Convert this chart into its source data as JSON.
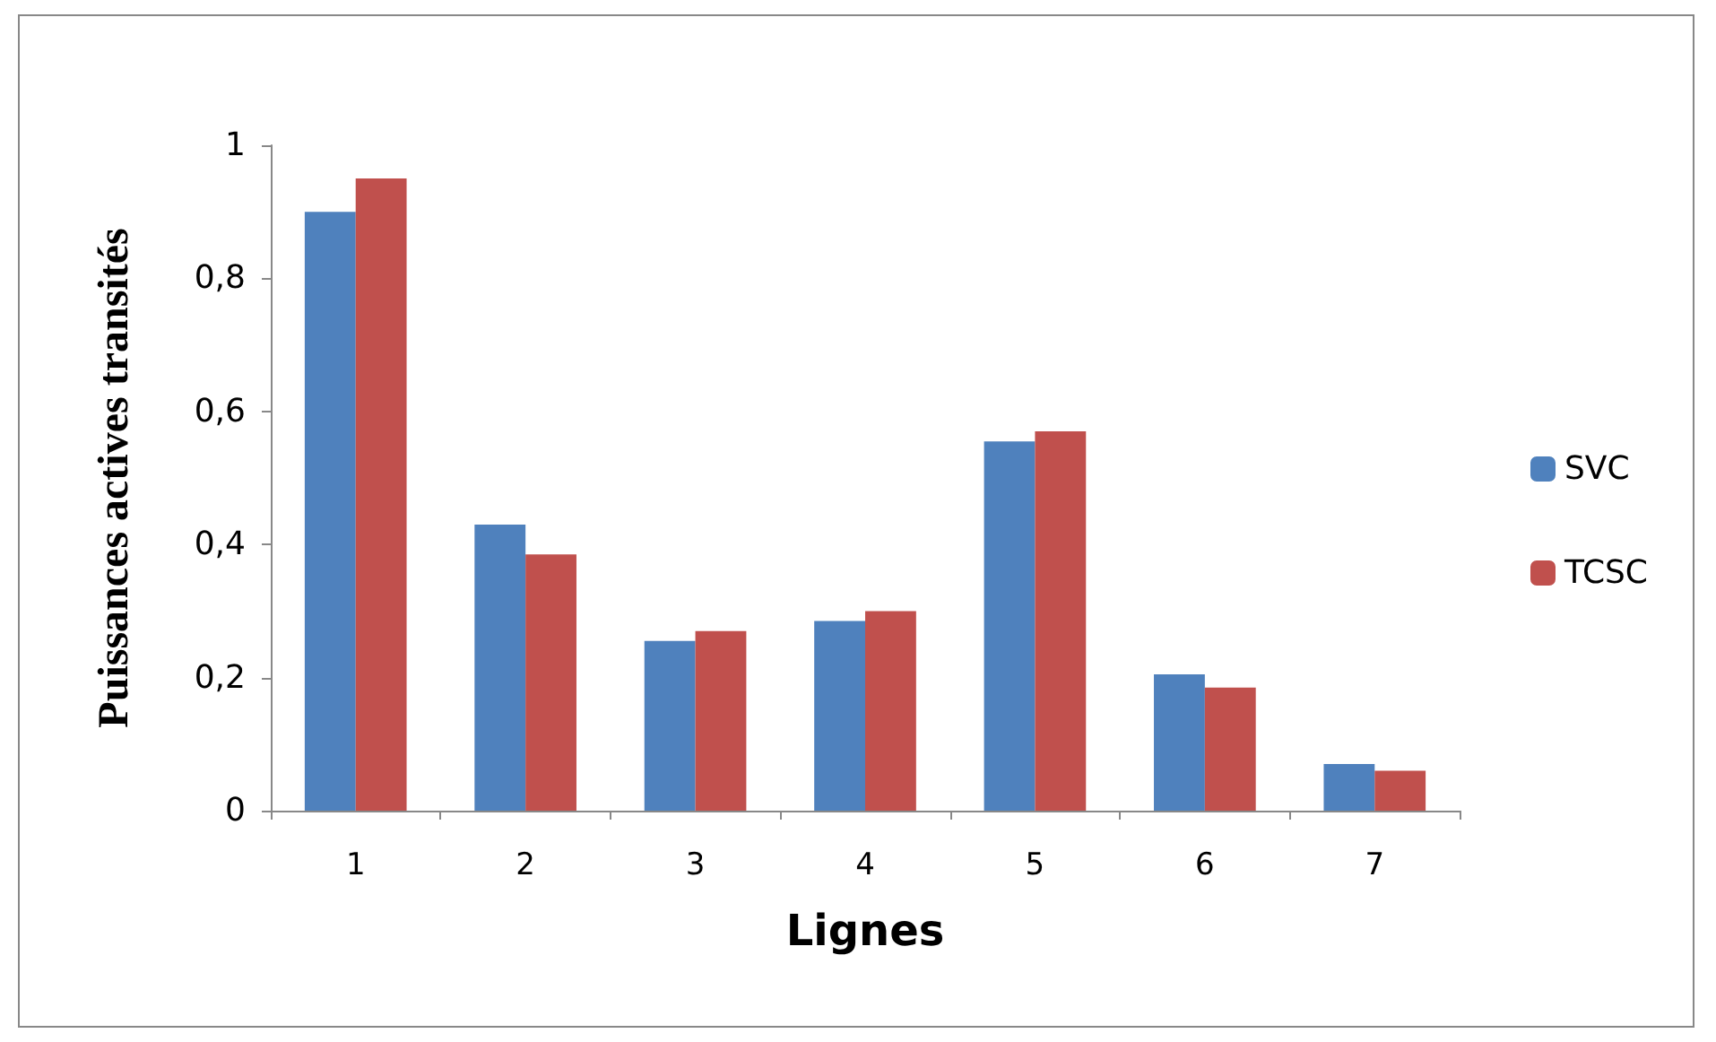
{
  "chart_data": {
    "type": "bar",
    "xlabel": "Lignes",
    "ylabel": "Puissances actives transités",
    "categories": [
      "1",
      "2",
      "3",
      "4",
      "5",
      "6",
      "7"
    ],
    "series": [
      {
        "name": "SVC",
        "color": "#4f81bd",
        "values": [
          0.9,
          0.43,
          0.255,
          0.285,
          0.555,
          0.205,
          0.07
        ]
      },
      {
        "name": "TCSC",
        "color": "#c0504d",
        "values": [
          0.95,
          0.385,
          0.27,
          0.3,
          0.57,
          0.185,
          0.06
        ]
      }
    ],
    "ylim": [
      0,
      1
    ],
    "yticks": [
      0,
      {
        "value": 0.2,
        "label": "0,2"
      },
      {
        "value": 0.4,
        "label": "0,4"
      },
      {
        "value": 0.6,
        "label": "0,6"
      },
      {
        "value": 0.8,
        "label": "0,8"
      },
      1
    ],
    "grid": false,
    "legend": "right"
  }
}
